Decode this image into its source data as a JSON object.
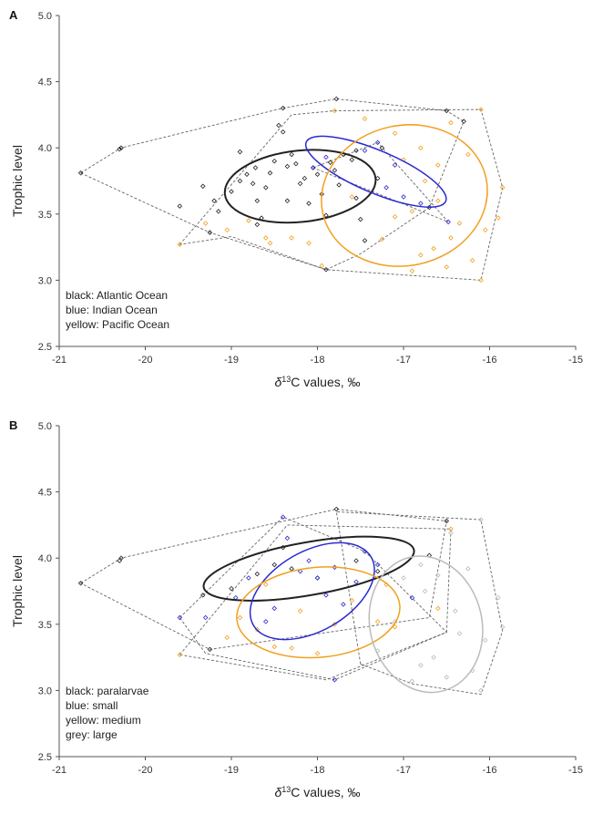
{
  "chart_data": [
    {
      "type": "scatter",
      "panel_label": "A",
      "xlabel_main": "δ",
      "xlabel_sup": "13",
      "xlabel_rest": "C values, ‰",
      "ylabel": "Trophic level",
      "xlim": [
        -21,
        -15
      ],
      "ylim": [
        2.5,
        5.0
      ],
      "xticks": [
        -21,
        -20,
        -19,
        -18,
        -17,
        -16,
        -15
      ],
      "yticks": [
        2.5,
        3.0,
        3.5,
        4.0,
        4.5,
        5.0
      ],
      "legend": [
        "black: Atlantic Ocean",
        "blue: Indian Ocean",
        "yellow: Pacific Ocean"
      ],
      "colors": {
        "black": "#222222",
        "blue": "#2a2ad0",
        "yellow": "#f0a020",
        "grey": "#bbbbbb",
        "hull": "#666666"
      },
      "series": [
        {
          "color": "black",
          "points": [
            [
              -20.75,
              3.81
            ],
            [
              -20.28,
              4.0
            ],
            [
              -20.3,
              3.99
            ],
            [
              -19.6,
              3.56
            ],
            [
              -19.33,
              3.71
            ],
            [
              -19.25,
              3.36
            ],
            [
              -19.15,
              3.52
            ],
            [
              -19.0,
              3.67
            ],
            [
              -18.9,
              3.75
            ],
            [
              -18.82,
              3.8
            ],
            [
              -18.9,
              3.97
            ],
            [
              -18.75,
              3.73
            ],
            [
              -18.72,
              3.85
            ],
            [
              -18.7,
              3.6
            ],
            [
              -18.65,
              3.47
            ],
            [
              -18.6,
              3.7
            ],
            [
              -18.55,
              3.81
            ],
            [
              -18.5,
              3.9
            ],
            [
              -18.45,
              4.17
            ],
            [
              -18.4,
              4.12
            ],
            [
              -18.35,
              3.86
            ],
            [
              -18.3,
              3.95
            ],
            [
              -18.25,
              3.88
            ],
            [
              -18.2,
              3.73
            ],
            [
              -18.15,
              3.77
            ],
            [
              -18.1,
              3.58
            ],
            [
              -18.05,
              3.85
            ],
            [
              -18.0,
              3.8
            ],
            [
              -17.95,
              3.65
            ],
            [
              -17.9,
              3.49
            ],
            [
              -17.85,
              3.89
            ],
            [
              -17.8,
              3.83
            ],
            [
              -17.75,
              3.72
            ],
            [
              -17.7,
              3.95
            ],
            [
              -17.6,
              3.91
            ],
            [
              -17.55,
              3.62
            ],
            [
              -17.5,
              3.46
            ],
            [
              -17.45,
              3.3
            ],
            [
              -17.9,
              3.08
            ],
            [
              -18.4,
              4.3
            ],
            [
              -17.78,
              4.37
            ],
            [
              -16.5,
              4.28
            ],
            [
              -16.3,
              4.2
            ],
            [
              -16.7,
              3.55
            ],
            [
              -17.3,
              3.77
            ],
            [
              -17.55,
              3.98
            ],
            [
              -18.7,
              3.42
            ],
            [
              -19.2,
              3.6
            ],
            [
              -18.35,
              3.6
            ],
            [
              -17.25,
              4.0
            ]
          ],
          "hull": [
            [
              -20.75,
              3.81
            ],
            [
              -20.28,
              4.0
            ],
            [
              -18.4,
              4.3
            ],
            [
              -17.78,
              4.37
            ],
            [
              -16.5,
              4.28
            ],
            [
              -16.3,
              4.2
            ],
            [
              -16.7,
              3.55
            ],
            [
              -17.5,
              3.2
            ],
            [
              -17.9,
              3.08
            ],
            [
              -19.25,
              3.36
            ]
          ],
          "ellipse": {
            "cx": -18.2,
            "cy": 3.71,
            "rx": 0.88,
            "ry": 0.27,
            "angle_deg": -6,
            "width": 2.0
          }
        },
        {
          "color": "blue",
          "points": [
            [
              -18.05,
              3.85
            ],
            [
              -17.9,
              3.93
            ],
            [
              -17.45,
              3.98
            ],
            [
              -17.3,
              4.04
            ],
            [
              -17.2,
              3.7
            ],
            [
              -17.0,
              3.63
            ],
            [
              -16.8,
              3.58
            ],
            [
              -16.48,
              3.44
            ],
            [
              -17.1,
              3.87
            ]
          ],
          "hull": [
            [
              -18.05,
              3.85
            ],
            [
              -17.3,
              4.04
            ],
            [
              -16.48,
              3.44
            ]
          ],
          "ellipse": {
            "cx": -17.32,
            "cy": 3.82,
            "rx": 0.88,
            "ry": 0.16,
            "angle_deg": 23,
            "width": 1.5
          }
        },
        {
          "color": "yellow",
          "points": [
            [
              -19.6,
              3.27
            ],
            [
              -19.3,
              3.43
            ],
            [
              -19.05,
              3.38
            ],
            [
              -18.8,
              3.45
            ],
            [
              -18.6,
              3.32
            ],
            [
              -18.55,
              3.28
            ],
            [
              -18.3,
              3.32
            ],
            [
              -18.1,
              3.28
            ],
            [
              -17.95,
              3.11
            ],
            [
              -17.25,
              3.31
            ],
            [
              -17.1,
              3.48
            ],
            [
              -16.9,
              3.07
            ],
            [
              -16.8,
              3.19
            ],
            [
              -16.65,
              3.24
            ],
            [
              -16.5,
              3.1
            ],
            [
              -16.45,
              3.32
            ],
            [
              -16.35,
              3.43
            ],
            [
              -16.2,
              3.15
            ],
            [
              -16.1,
              3.0
            ],
            [
              -16.05,
              3.38
            ],
            [
              -15.85,
              3.7
            ],
            [
              -15.9,
              3.47
            ],
            [
              -16.1,
              4.29
            ],
            [
              -16.45,
              4.19
            ],
            [
              -16.8,
              4.0
            ],
            [
              -17.0,
              3.91
            ],
            [
              -16.6,
              3.87
            ],
            [
              -16.25,
              3.95
            ],
            [
              -16.75,
              3.75
            ],
            [
              -17.45,
              4.22
            ],
            [
              -17.8,
              4.28
            ],
            [
              -17.1,
              4.11
            ],
            [
              -16.9,
              3.52
            ],
            [
              -16.6,
              3.6
            ],
            [
              -17.6,
              3.63
            ]
          ],
          "hull": [
            [
              -19.6,
              3.27
            ],
            [
              -18.3,
              4.25
            ],
            [
              -17.8,
              4.28
            ],
            [
              -16.1,
              4.29
            ],
            [
              -15.85,
              3.7
            ],
            [
              -16.1,
              3.0
            ],
            [
              -17.9,
              3.08
            ],
            [
              -19.0,
              3.33
            ]
          ],
          "ellipse": {
            "cx": -16.99,
            "cy": 3.64,
            "rx": 0.97,
            "ry": 0.53,
            "angle_deg": -12,
            "width": 1.5
          }
        }
      ]
    },
    {
      "type": "scatter",
      "panel_label": "B",
      "xlabel_main": "δ",
      "xlabel_sup": "13",
      "xlabel_rest": "C values, ‰",
      "ylabel": "Trophic level",
      "xlim": [
        -21,
        -15
      ],
      "ylim": [
        2.5,
        5.0
      ],
      "xticks": [
        -21,
        -20,
        -19,
        -18,
        -17,
        -16,
        -15
      ],
      "yticks": [
        2.5,
        3.0,
        3.5,
        4.0,
        4.5,
        5.0
      ],
      "legend": [
        "black: paralarvae",
        "blue: small",
        "yellow: medium",
        "grey: large"
      ],
      "colors": {
        "black": "#222222",
        "blue": "#2a2ad0",
        "yellow": "#f0a020",
        "grey": "#bbbbbb",
        "hull": "#666666"
      },
      "series": [
        {
          "color": "black",
          "points": [
            [
              -20.75,
              3.81
            ],
            [
              -20.28,
              4.0
            ],
            [
              -20.3,
              3.98
            ],
            [
              -19.33,
              3.72
            ],
            [
              -19.0,
              3.77
            ],
            [
              -18.7,
              3.88
            ],
            [
              -18.5,
              3.95
            ],
            [
              -18.3,
              3.92
            ],
            [
              -18.0,
              3.85
            ],
            [
              -17.78,
              4.37
            ],
            [
              -17.55,
              3.98
            ],
            [
              -16.7,
              4.02
            ],
            [
              -16.5,
              4.28
            ],
            [
              -17.3,
              3.9
            ],
            [
              -18.4,
              4.08
            ],
            [
              -19.25,
              3.31
            ]
          ],
          "hull": [
            [
              -20.75,
              3.81
            ],
            [
              -20.28,
              4.0
            ],
            [
              -17.78,
              4.37
            ],
            [
              -16.5,
              4.28
            ],
            [
              -16.7,
              3.55
            ],
            [
              -19.25,
              3.31
            ]
          ],
          "ellipse": {
            "cx": -18.1,
            "cy": 3.92,
            "rx": 1.24,
            "ry": 0.2,
            "angle_deg": -10,
            "width": 2.0
          }
        },
        {
          "color": "blue",
          "points": [
            [
              -19.6,
              3.55
            ],
            [
              -19.3,
              3.55
            ],
            [
              -18.95,
              3.7
            ],
            [
              -18.8,
              3.85
            ],
            [
              -18.6,
              3.52
            ],
            [
              -18.5,
              3.62
            ],
            [
              -18.4,
              4.31
            ],
            [
              -18.35,
              4.15
            ],
            [
              -18.2,
              3.9
            ],
            [
              -18.1,
              3.98
            ],
            [
              -18.0,
              3.85
            ],
            [
              -17.9,
              3.72
            ],
            [
              -17.8,
              3.93
            ],
            [
              -17.7,
              3.65
            ],
            [
              -17.55,
              3.82
            ],
            [
              -17.45,
              4.05
            ],
            [
              -17.8,
              3.08
            ],
            [
              -17.3,
              3.95
            ],
            [
              -16.9,
              3.7
            ]
          ],
          "hull": [
            [
              -19.6,
              3.55
            ],
            [
              -18.4,
              4.31
            ],
            [
              -17.45,
              4.05
            ],
            [
              -16.5,
              3.44
            ],
            [
              -17.8,
              3.08
            ],
            [
              -19.3,
              3.28
            ]
          ],
          "ellipse": {
            "cx": -18.06,
            "cy": 3.75,
            "rx": 0.79,
            "ry": 0.3,
            "angle_deg": -30,
            "width": 1.5
          }
        },
        {
          "color": "yellow",
          "points": [
            [
              -19.6,
              3.27
            ],
            [
              -19.05,
              3.4
            ],
            [
              -18.9,
              3.55
            ],
            [
              -18.7,
              3.46
            ],
            [
              -18.5,
              3.33
            ],
            [
              -18.3,
              3.32
            ],
            [
              -18.0,
              3.28
            ],
            [
              -17.8,
              3.5
            ],
            [
              -17.6,
              3.68
            ],
            [
              -17.3,
              3.52
            ],
            [
              -17.1,
              3.48
            ],
            [
              -16.6,
              3.62
            ],
            [
              -16.45,
              4.22
            ],
            [
              -17.2,
              3.8
            ],
            [
              -18.2,
              3.6
            ],
            [
              -18.6,
              3.8
            ]
          ],
          "hull": [
            [
              -19.6,
              3.27
            ],
            [
              -18.35,
              4.25
            ],
            [
              -16.45,
              4.22
            ],
            [
              -16.5,
              3.44
            ],
            [
              -17.9,
              3.08
            ]
          ],
          "ellipse": {
            "cx": -17.99,
            "cy": 3.59,
            "rx": 0.95,
            "ry": 0.34,
            "angle_deg": -5,
            "width": 1.5
          }
        },
        {
          "color": "grey",
          "points": [
            [
              -17.3,
              3.3
            ],
            [
              -17.1,
              3.52
            ],
            [
              -16.9,
              3.07
            ],
            [
              -16.8,
              3.19
            ],
            [
              -16.65,
              3.25
            ],
            [
              -16.5,
              3.1
            ],
            [
              -16.35,
              3.43
            ],
            [
              -16.2,
              3.15
            ],
            [
              -16.1,
              3.0
            ],
            [
              -16.05,
              3.38
            ],
            [
              -15.85,
              3.48
            ],
            [
              -15.9,
              3.7
            ],
            [
              -16.1,
              4.29
            ],
            [
              -16.45,
              4.19
            ],
            [
              -16.8,
              3.95
            ],
            [
              -17.0,
              3.85
            ],
            [
              -16.6,
              3.87
            ],
            [
              -16.25,
              3.92
            ],
            [
              -16.75,
              3.75
            ],
            [
              -16.4,
              3.6
            ]
          ],
          "hull": [
            [
              -17.5,
              3.2
            ],
            [
              -17.78,
              4.35
            ],
            [
              -16.1,
              4.29
            ],
            [
              -15.85,
              3.45
            ],
            [
              -16.1,
              2.97
            ],
            [
              -16.9,
              3.05
            ]
          ],
          "ellipse": {
            "cx": -16.74,
            "cy": 3.5,
            "rx": 0.65,
            "ry": 0.52,
            "angle_deg": -14,
            "width": 1.5
          }
        }
      ]
    }
  ]
}
